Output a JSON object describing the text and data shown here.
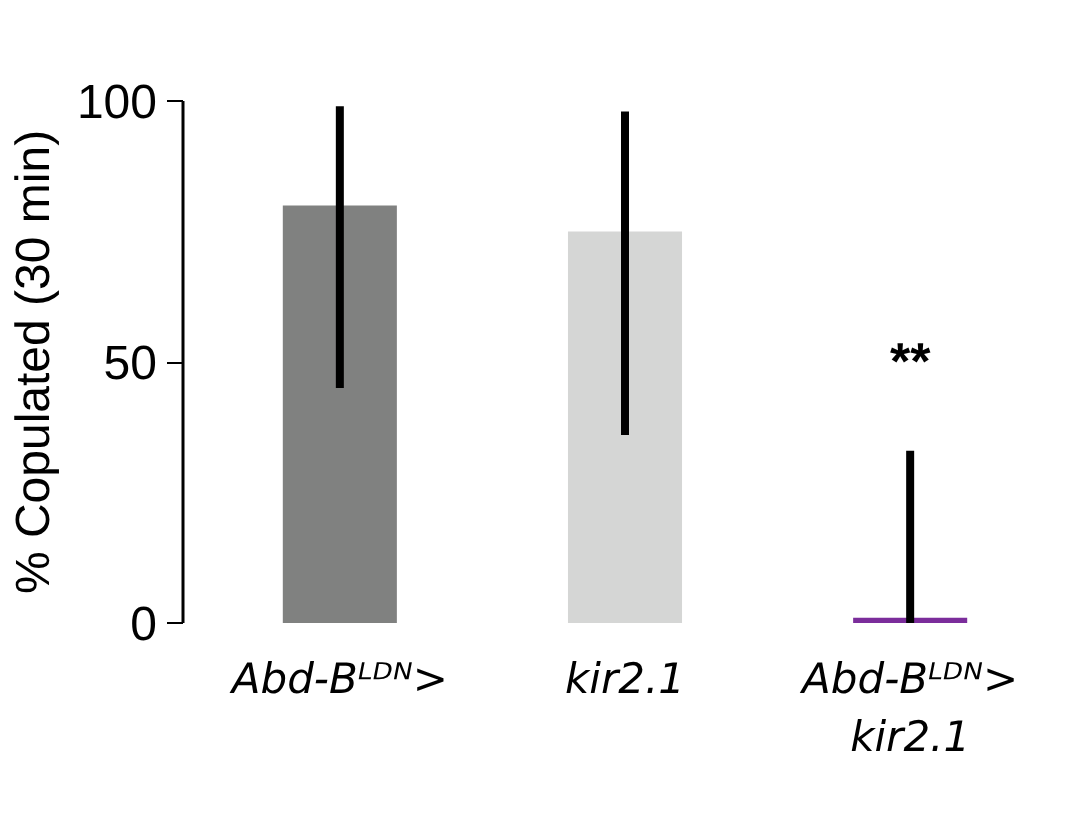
{
  "chart_data": {
    "type": "bar",
    "ylabel": "% Copulated (30 min)",
    "categories": [
      "Abd-Bᴸᴰᴺ>",
      "kir2.1",
      "Abd-Bᴸᴰᴺ>\nkir2.1"
    ],
    "values": [
      80,
      75,
      1
    ],
    "colors": [
      "#808180",
      "#d5d6d5",
      "#7b2d9b"
    ],
    "errors": [
      [
        45,
        99
      ],
      [
        36,
        98
      ],
      [
        0,
        33
      ]
    ],
    "ylim": [
      0,
      100
    ],
    "yticks": [
      0,
      50,
      100
    ],
    "grid": false,
    "annotations": [
      "**"
    ]
  }
}
